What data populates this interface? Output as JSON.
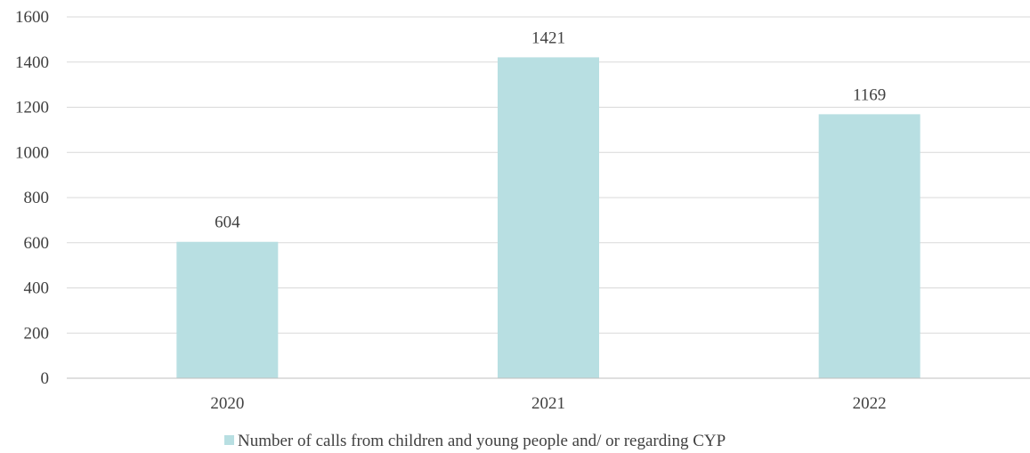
{
  "chart_data": {
    "type": "bar",
    "categories": [
      "2020",
      "2021",
      "2022"
    ],
    "series": [
      {
        "name": "Number of calls from children and young people and/ or regarding CYP",
        "values": [
          604,
          1421,
          1169
        ],
        "color": "#b8dfe2"
      }
    ],
    "data_labels": [
      "604",
      "1421",
      "1169"
    ],
    "ylim": [
      0,
      1600
    ],
    "yticks": [
      "0",
      "200",
      "400",
      "600",
      "800",
      "1000",
      "1200",
      "1400",
      "1600"
    ],
    "grid": true,
    "legend_position": "bottom",
    "title": "",
    "xlabel": "",
    "ylabel": ""
  }
}
